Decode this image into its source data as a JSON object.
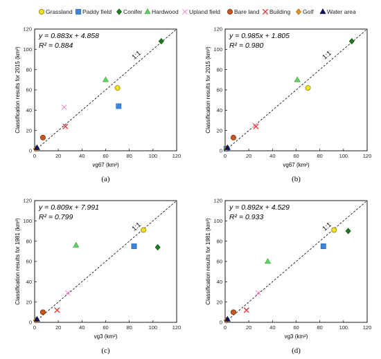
{
  "legend": [
    {
      "label": "Grassland",
      "marker": "circle",
      "color": "#f2e11e",
      "stroke": "#8a7a10"
    },
    {
      "label": "Paddy field",
      "marker": "square",
      "color": "#3a86e0",
      "stroke": "#1d5aa8"
    },
    {
      "label": "Conifer",
      "marker": "diamond",
      "color": "#1e7a1e",
      "stroke": "#0f4d0f"
    },
    {
      "label": "Hardwood",
      "marker": "triangle",
      "color": "#5fd35f",
      "stroke": "#2f9a2f"
    },
    {
      "label": "Upland field",
      "marker": "cross",
      "color": "#f08ad0",
      "stroke": "#f08ad0"
    },
    {
      "label": "Bare land",
      "marker": "circle",
      "color": "#c8561e",
      "stroke": "#7a3010"
    },
    {
      "label": "Building",
      "marker": "x",
      "color": "#e03a3a",
      "stroke": "#e03a3a"
    },
    {
      "label": "Golf",
      "marker": "diamond",
      "color": "#e8961e",
      "stroke": "#9a5a0a"
    },
    {
      "label": "Water area",
      "marker": "triangle",
      "color": "#101060",
      "stroke": "#000030"
    }
  ],
  "chart_data": [
    {
      "type": "scatter",
      "caption": "(a)",
      "xlabel": "vg67 (km²)",
      "ylabel": "Classification results for 2015 (km²)",
      "xlim": [
        0,
        120
      ],
      "ylim": [
        0,
        120
      ],
      "xticks": [
        "0",
        "20",
        "40",
        "60",
        "80",
        "100",
        "120"
      ],
      "yticks": [
        "0",
        "20",
        "40",
        "60",
        "80",
        "100",
        "120"
      ],
      "equation": "y = 0.883x + 4.858",
      "r2": "R² = 0.884",
      "line_label": "1:1",
      "points": [
        {
          "class": "Grassland",
          "x": 70,
          "y": 62
        },
        {
          "class": "Paddy field",
          "x": 71,
          "y": 44
        },
        {
          "class": "Conifer",
          "x": 107,
          "y": 108
        },
        {
          "class": "Hardwood",
          "x": 60,
          "y": 70
        },
        {
          "class": "Upland field",
          "x": 25,
          "y": 43
        },
        {
          "class": "Bare land",
          "x": 7,
          "y": 13
        },
        {
          "class": "Building",
          "x": 26,
          "y": 24
        },
        {
          "class": "Golf",
          "x": 1,
          "y": 2
        },
        {
          "class": "Water area",
          "x": 2,
          "y": 3
        }
      ]
    },
    {
      "type": "scatter",
      "caption": "(b)",
      "xlabel": "vg67 (km²)",
      "ylabel": "Classification results for 2015 (km²)",
      "xlim": [
        0,
        120
      ],
      "ylim": [
        0,
        120
      ],
      "xticks": [
        "0",
        "20",
        "40",
        "60",
        "80",
        "100",
        "120"
      ],
      "yticks": [
        "0",
        "20",
        "40",
        "60",
        "80",
        "100",
        "120"
      ],
      "equation": "y = 0.985x + 1.805",
      "r2": "R² = 0.980",
      "line_label": "1:1",
      "points": [
        {
          "class": "Grassland",
          "x": 70,
          "y": 62
        },
        {
          "class": "Paddy field",
          "x": 1,
          "y": 2
        },
        {
          "class": "Conifer",
          "x": 107,
          "y": 108
        },
        {
          "class": "Hardwood",
          "x": 61,
          "y": 70
        },
        {
          "class": "Upland field",
          "x": 25,
          "y": 25
        },
        {
          "class": "Bare land",
          "x": 7,
          "y": 13
        },
        {
          "class": "Building",
          "x": 26,
          "y": 24
        },
        {
          "class": "Golf",
          "x": 1,
          "y": 2
        },
        {
          "class": "Water area",
          "x": 2,
          "y": 3
        }
      ]
    },
    {
      "type": "scatter",
      "caption": "(c)",
      "xlabel": "vg3 (km²)",
      "ylabel": "Classification results for 1981 (km²)",
      "xlim": [
        0,
        120
      ],
      "ylim": [
        0,
        120
      ],
      "xticks": [
        "0",
        "20",
        "40",
        "60",
        "80",
        "100",
        "120"
      ],
      "yticks": [
        "0",
        "20",
        "40",
        "60",
        "80",
        "100",
        "120"
      ],
      "equation": "y = 0.809x + 7.991",
      "r2": "R² = 0.799",
      "line_label": "1:1",
      "points": [
        {
          "class": "Grassland",
          "x": 92,
          "y": 91
        },
        {
          "class": "Paddy field",
          "x": 84,
          "y": 75
        },
        {
          "class": "Conifer",
          "x": 104,
          "y": 74
        },
        {
          "class": "Hardwood",
          "x": 35,
          "y": 76
        },
        {
          "class": "Upland field",
          "x": 28,
          "y": 29
        },
        {
          "class": "Bare land",
          "x": 7,
          "y": 10
        },
        {
          "class": "Building",
          "x": 19,
          "y": 12
        },
        {
          "class": "Golf",
          "x": 1,
          "y": 2
        },
        {
          "class": "Water area",
          "x": 2,
          "y": 3
        }
      ]
    },
    {
      "type": "scatter",
      "caption": "(d)",
      "xlabel": "vg3 (km²)",
      "ylabel": "Classification results for 1981 (km²)",
      "xlim": [
        0,
        120
      ],
      "ylim": [
        0,
        120
      ],
      "xticks": [
        "0",
        "20",
        "40",
        "60",
        "80",
        "100",
        "120"
      ],
      "yticks": [
        "0",
        "20",
        "40",
        "60",
        "80",
        "100",
        "120"
      ],
      "equation": "y = 0.892x + 4.529",
      "r2": "R² = 0.933",
      "line_label": "1:1",
      "points": [
        {
          "class": "Grassland",
          "x": 92,
          "y": 91
        },
        {
          "class": "Paddy field",
          "x": 83,
          "y": 75
        },
        {
          "class": "Conifer",
          "x": 104,
          "y": 90
        },
        {
          "class": "Hardwood",
          "x": 36,
          "y": 60
        },
        {
          "class": "Upland field",
          "x": 28,
          "y": 29
        },
        {
          "class": "Bare land",
          "x": 7,
          "y": 10
        },
        {
          "class": "Building",
          "x": 18,
          "y": 12
        },
        {
          "class": "Golf",
          "x": 1,
          "y": 2
        },
        {
          "class": "Water area",
          "x": 2,
          "y": 3
        }
      ]
    }
  ]
}
